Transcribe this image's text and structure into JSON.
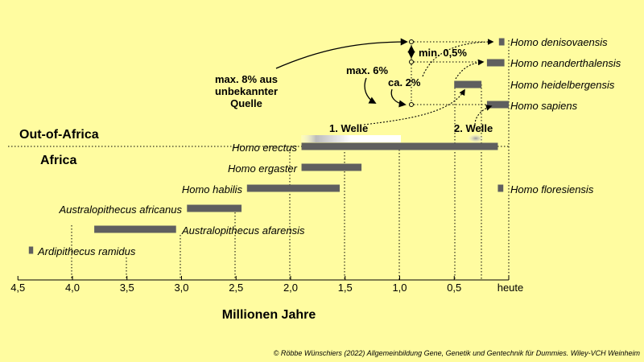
{
  "regions": {
    "out_of_africa": "Out-of-Africa",
    "africa": "Africa"
  },
  "axis": {
    "title": "Millionen Jahre",
    "ticks": [
      "4,5",
      "4,0",
      "3,5",
      "3,0",
      "2,5",
      "2,0",
      "1,5",
      "1,0",
      "0,5",
      "heute"
    ],
    "tick_values": [
      4.5,
      4.0,
      3.5,
      3.0,
      2.5,
      2.0,
      1.5,
      1.0,
      0.5,
      0
    ]
  },
  "species": [
    {
      "name": "Homo denisovaensis",
      "start": 0.09,
      "end": 0.04
    },
    {
      "name": "Homo neanderthalensis",
      "start": 0.2,
      "end": 0.04
    },
    {
      "name": "Homo heidelbergensis",
      "start": 0.5,
      "end": 0.25
    },
    {
      "name": "Homo sapiens",
      "start": 0.2,
      "end": 0
    },
    {
      "name": "Homo erectus",
      "start": 1.9,
      "end": 0.1
    },
    {
      "name": "Homo ergaster",
      "start": 1.9,
      "end": 1.35
    },
    {
      "name": "Homo habilis",
      "start": 2.4,
      "end": 1.55
    },
    {
      "name": "Homo floresiensis",
      "start": 0.1,
      "end": 0.05
    },
    {
      "name": "Australopithecus africanus",
      "start": 2.95,
      "end": 2.45
    },
    {
      "name": "Australopithecus afarensis",
      "start": 3.8,
      "end": 3.05
    },
    {
      "name": "Ardipithecus ramidus",
      "start": 4.4,
      "end": 4.36
    }
  ],
  "waves": {
    "first": "1. Welle",
    "second": "2. Welle"
  },
  "admixture": {
    "source_line1": "max. 8% aus",
    "source_line2": "unbekannter",
    "source_line3": "Quelle",
    "max6": "max. 6%",
    "ca2": "ca. 2%",
    "min05": "min. 0,5%"
  },
  "credit": "© Röbbe Wünschiers (2022) Allgemeinbildung Gene, Genetik und Gentechnik für Dummies. Wiley-VCH Weinheim",
  "colors": {
    "background": "#fffca0",
    "bar": "#5f5f5f"
  }
}
